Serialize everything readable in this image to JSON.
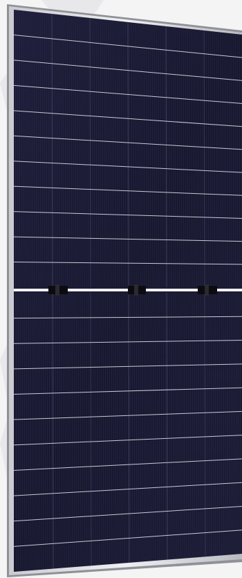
{
  "image": {
    "subject": "solar-panel",
    "colors": {
      "background": "#f4f4f5",
      "background_watermark": "#e6e6e9",
      "frame_outer": "#9ea0a6",
      "frame_inner": "#e9eaed",
      "frame_shadow": "#6f7076",
      "cell": "#1b1b33",
      "cell_dark": "#121226",
      "cell_line": "#2a2a48",
      "cell_gap": "#c9ccd6",
      "busbar_gap": "#f0f1f4",
      "junction": "#0a0a0e"
    },
    "panel": {
      "cell_rows_upper": 10,
      "cell_rows_lower": 10,
      "cell_columns": 6,
      "split": "half-cut",
      "junction_boxes": 3
    }
  }
}
